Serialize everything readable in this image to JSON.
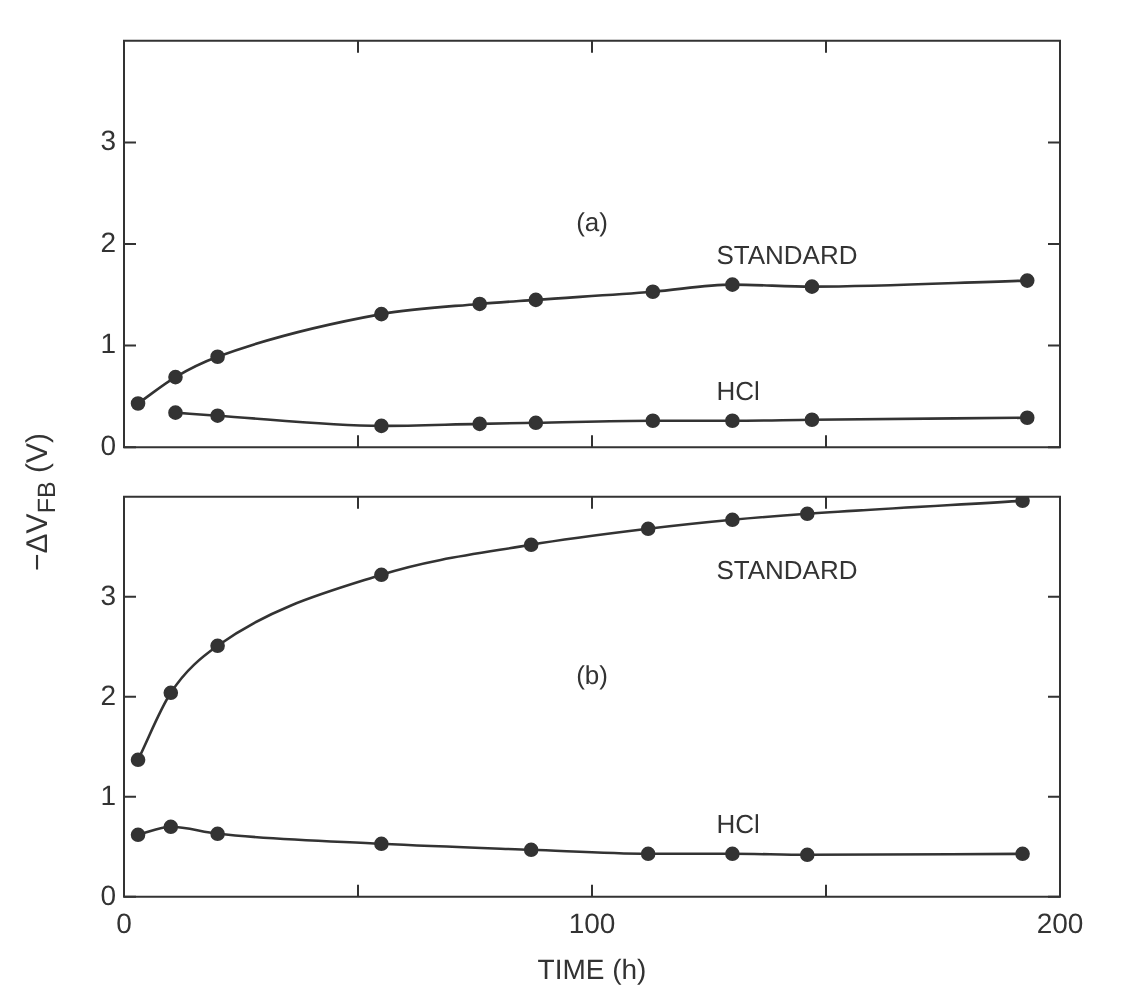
{
  "chart_data": [
    {
      "type": "line",
      "ylabel": "−ΔV$_{FB}$ (V)",
      "annotations": [
        "(a)"
      ],
      "xlim": [
        0,
        200
      ],
      "xticks": [
        {
          "value": 0,
          "label": null
        },
        {
          "value": 50,
          "label": null
        },
        {
          "value": 100,
          "label": null
        },
        {
          "value": 150,
          "label": null
        },
        {
          "value": 200,
          "label": null
        }
      ],
      "ylim": [
        0,
        4
      ],
      "yticks": [
        0,
        1,
        2,
        3
      ],
      "tick_labels": "y",
      "grid": false,
      "legend": false,
      "marker": "circle",
      "line_style": "solid",
      "series": [
        {
          "name": "STANDARD",
          "color": "#333333",
          "x": [
            3,
            11,
            20,
            55,
            76,
            88,
            113,
            130,
            147,
            193
          ],
          "values": [
            0.43,
            0.69,
            0.89,
            1.31,
            1.41,
            1.45,
            1.53,
            1.6,
            1.58,
            1.64
          ]
        },
        {
          "name": "HCl",
          "color": "#333333",
          "x": [
            11,
            20,
            55,
            76,
            88,
            113,
            130,
            147,
            193
          ],
          "values": [
            0.34,
            0.31,
            0.21,
            0.23,
            0.24,
            0.26,
            0.26,
            0.27,
            0.29
          ]
        }
      ]
    },
    {
      "type": "line",
      "xlabel": "TIME (h)",
      "annotations": [
        "(b)"
      ],
      "xlim": [
        0,
        200
      ],
      "xticks": [
        0,
        {
          "value": 50,
          "label": null
        },
        100,
        {
          "value": 150,
          "label": null
        },
        200
      ],
      "ylim": [
        0,
        4
      ],
      "yticks": [
        0,
        1,
        2,
        3
      ],
      "grid": false,
      "legend": false,
      "marker": "circle",
      "line_style": "solid",
      "series": [
        {
          "name": "STANDARD",
          "color": "#333333",
          "x": [
            3,
            10,
            20,
            55,
            87,
            112,
            130,
            146,
            192
          ],
          "values": [
            1.37,
            2.04,
            2.51,
            3.22,
            3.52,
            3.68,
            3.77,
            3.83,
            3.96
          ]
        },
        {
          "name": "HCl",
          "color": "#333333",
          "x": [
            3,
            10,
            20,
            55,
            87,
            112,
            130,
            146,
            192
          ],
          "values": [
            0.62,
            0.7,
            0.63,
            0.53,
            0.47,
            0.43,
            0.43,
            0.42,
            0.43
          ]
        }
      ]
    }
  ]
}
